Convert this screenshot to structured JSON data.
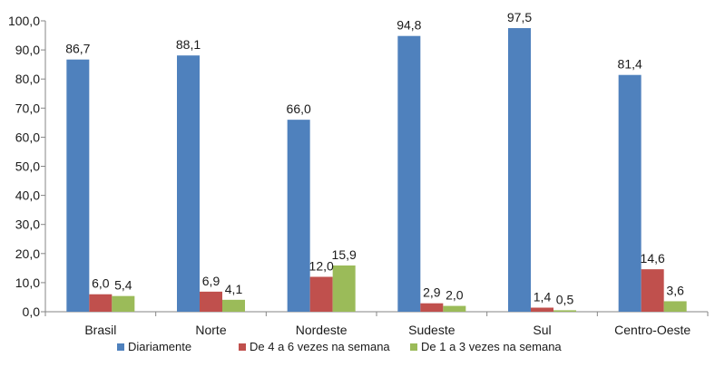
{
  "chart_data": {
    "type": "bar",
    "categories": [
      "Brasil",
      "Norte",
      "Nordeste",
      "Sudeste",
      "Sul",
      "Centro-Oeste"
    ],
    "series": [
      {
        "name": "Diariamente",
        "color": "#4f81bd",
        "values": [
          86.7,
          88.1,
          66.0,
          94.8,
          97.5,
          81.4
        ],
        "labels": [
          "86,7",
          "88,1",
          "66,0",
          "94,8",
          "97,5",
          "81,4"
        ]
      },
      {
        "name": "De 4 a 6 vezes na semana",
        "color": "#c0504d",
        "values": [
          6.0,
          6.9,
          12.0,
          2.9,
          1.4,
          14.6
        ],
        "labels": [
          "6,0",
          "6,9",
          "12,0",
          "2,9",
          "1,4",
          "14,6"
        ]
      },
      {
        "name": "De 1 a 3 vezes na semana",
        "color": "#9bbb59",
        "values": [
          5.4,
          4.1,
          15.9,
          2.0,
          0.5,
          3.6
        ],
        "labels": [
          "5,4",
          "4,1",
          "15,9",
          "2,0",
          "0,5",
          "3,6"
        ]
      }
    ],
    "ylim": [
      0,
      100
    ],
    "yticks": [
      0,
      10,
      20,
      30,
      40,
      50,
      60,
      70,
      80,
      90,
      100
    ],
    "ytick_labels": [
      "0,0",
      "10,0",
      "20,0",
      "30,0",
      "40,0",
      "50,0",
      "60,0",
      "70,0",
      "80,0",
      "90,0",
      "100,0"
    ],
    "grid": false,
    "legend_position": "bottom",
    "title": "",
    "xlabel": "",
    "ylabel": ""
  }
}
